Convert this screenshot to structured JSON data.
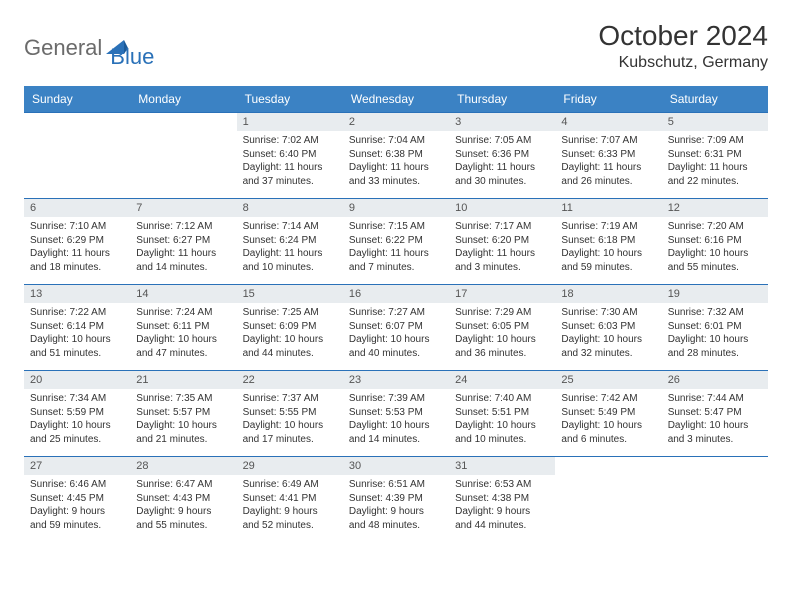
{
  "brand": {
    "part1": "General",
    "part2": "Blue"
  },
  "title": "October 2024",
  "location": "Kubschutz, Germany",
  "colors": {
    "header_bg": "#3b82c4",
    "header_text": "#ffffff",
    "daynum_bg": "#e8ecef",
    "daynum_text": "#555555",
    "border": "#2a71b8",
    "body_text": "#333333",
    "logo_gray": "#6b6b6b",
    "logo_blue": "#2a71b8"
  },
  "day_names": [
    "Sunday",
    "Monday",
    "Tuesday",
    "Wednesday",
    "Thursday",
    "Friday",
    "Saturday"
  ],
  "weeks": [
    [
      null,
      null,
      {
        "n": "1",
        "sunrise": "7:02 AM",
        "sunset": "6:40 PM",
        "daylight": "11 hours and 37 minutes."
      },
      {
        "n": "2",
        "sunrise": "7:04 AM",
        "sunset": "6:38 PM",
        "daylight": "11 hours and 33 minutes."
      },
      {
        "n": "3",
        "sunrise": "7:05 AM",
        "sunset": "6:36 PM",
        "daylight": "11 hours and 30 minutes."
      },
      {
        "n": "4",
        "sunrise": "7:07 AM",
        "sunset": "6:33 PM",
        "daylight": "11 hours and 26 minutes."
      },
      {
        "n": "5",
        "sunrise": "7:09 AM",
        "sunset": "6:31 PM",
        "daylight": "11 hours and 22 minutes."
      }
    ],
    [
      {
        "n": "6",
        "sunrise": "7:10 AM",
        "sunset": "6:29 PM",
        "daylight": "11 hours and 18 minutes."
      },
      {
        "n": "7",
        "sunrise": "7:12 AM",
        "sunset": "6:27 PM",
        "daylight": "11 hours and 14 minutes."
      },
      {
        "n": "8",
        "sunrise": "7:14 AM",
        "sunset": "6:24 PM",
        "daylight": "11 hours and 10 minutes."
      },
      {
        "n": "9",
        "sunrise": "7:15 AM",
        "sunset": "6:22 PM",
        "daylight": "11 hours and 7 minutes."
      },
      {
        "n": "10",
        "sunrise": "7:17 AM",
        "sunset": "6:20 PM",
        "daylight": "11 hours and 3 minutes."
      },
      {
        "n": "11",
        "sunrise": "7:19 AM",
        "sunset": "6:18 PM",
        "daylight": "10 hours and 59 minutes."
      },
      {
        "n": "12",
        "sunrise": "7:20 AM",
        "sunset": "6:16 PM",
        "daylight": "10 hours and 55 minutes."
      }
    ],
    [
      {
        "n": "13",
        "sunrise": "7:22 AM",
        "sunset": "6:14 PM",
        "daylight": "10 hours and 51 minutes."
      },
      {
        "n": "14",
        "sunrise": "7:24 AM",
        "sunset": "6:11 PM",
        "daylight": "10 hours and 47 minutes."
      },
      {
        "n": "15",
        "sunrise": "7:25 AM",
        "sunset": "6:09 PM",
        "daylight": "10 hours and 44 minutes."
      },
      {
        "n": "16",
        "sunrise": "7:27 AM",
        "sunset": "6:07 PM",
        "daylight": "10 hours and 40 minutes."
      },
      {
        "n": "17",
        "sunrise": "7:29 AM",
        "sunset": "6:05 PM",
        "daylight": "10 hours and 36 minutes."
      },
      {
        "n": "18",
        "sunrise": "7:30 AM",
        "sunset": "6:03 PM",
        "daylight": "10 hours and 32 minutes."
      },
      {
        "n": "19",
        "sunrise": "7:32 AM",
        "sunset": "6:01 PM",
        "daylight": "10 hours and 28 minutes."
      }
    ],
    [
      {
        "n": "20",
        "sunrise": "7:34 AM",
        "sunset": "5:59 PM",
        "daylight": "10 hours and 25 minutes."
      },
      {
        "n": "21",
        "sunrise": "7:35 AM",
        "sunset": "5:57 PM",
        "daylight": "10 hours and 21 minutes."
      },
      {
        "n": "22",
        "sunrise": "7:37 AM",
        "sunset": "5:55 PM",
        "daylight": "10 hours and 17 minutes."
      },
      {
        "n": "23",
        "sunrise": "7:39 AM",
        "sunset": "5:53 PM",
        "daylight": "10 hours and 14 minutes."
      },
      {
        "n": "24",
        "sunrise": "7:40 AM",
        "sunset": "5:51 PM",
        "daylight": "10 hours and 10 minutes."
      },
      {
        "n": "25",
        "sunrise": "7:42 AM",
        "sunset": "5:49 PM",
        "daylight": "10 hours and 6 minutes."
      },
      {
        "n": "26",
        "sunrise": "7:44 AM",
        "sunset": "5:47 PM",
        "daylight": "10 hours and 3 minutes."
      }
    ],
    [
      {
        "n": "27",
        "sunrise": "6:46 AM",
        "sunset": "4:45 PM",
        "daylight": "9 hours and 59 minutes."
      },
      {
        "n": "28",
        "sunrise": "6:47 AM",
        "sunset": "4:43 PM",
        "daylight": "9 hours and 55 minutes."
      },
      {
        "n": "29",
        "sunrise": "6:49 AM",
        "sunset": "4:41 PM",
        "daylight": "9 hours and 52 minutes."
      },
      {
        "n": "30",
        "sunrise": "6:51 AM",
        "sunset": "4:39 PM",
        "daylight": "9 hours and 48 minutes."
      },
      {
        "n": "31",
        "sunrise": "6:53 AM",
        "sunset": "4:38 PM",
        "daylight": "9 hours and 44 minutes."
      },
      null,
      null
    ]
  ],
  "labels": {
    "sunrise": "Sunrise:",
    "sunset": "Sunset:",
    "daylight": "Daylight:"
  }
}
